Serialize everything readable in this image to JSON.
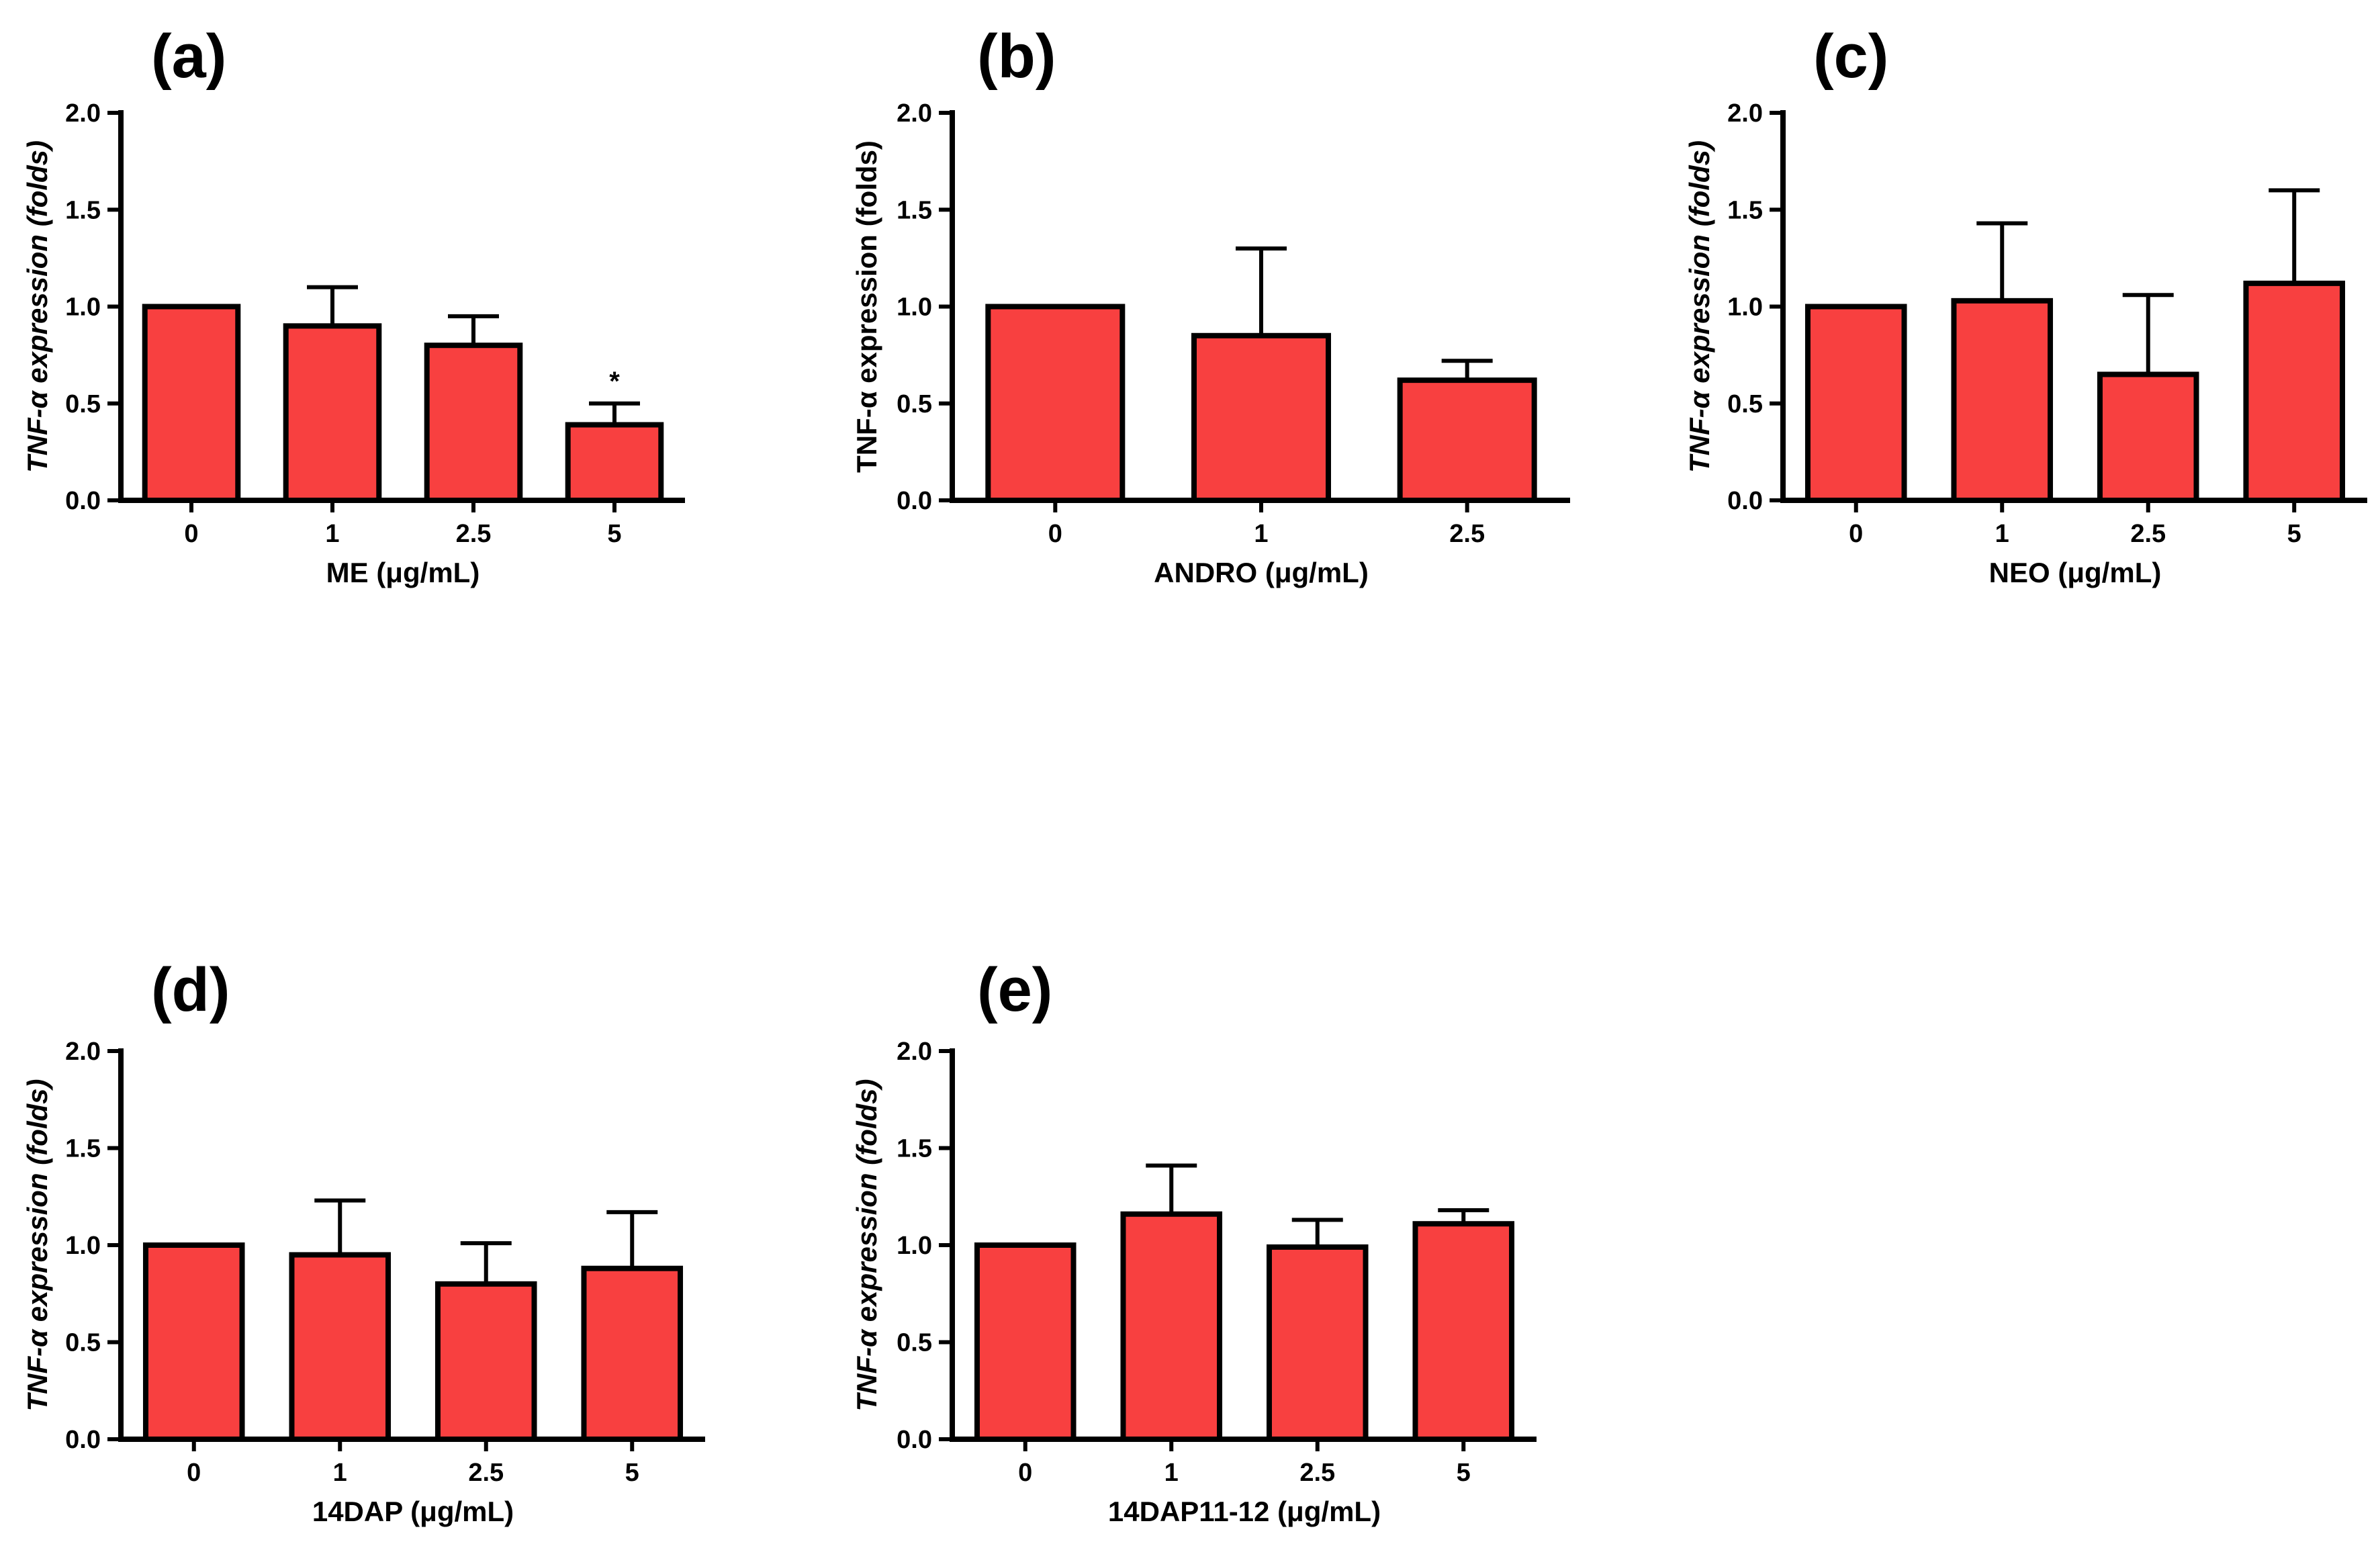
{
  "chart_data": [
    {
      "type": "bar",
      "panel_label": "(a)",
      "title": "",
      "xlabel": "ME (μg/mL)",
      "ylabel": "TNF-α expression (folds)",
      "ylabel_italic": true,
      "ylim": [
        0,
        2.0
      ],
      "yticks": [
        "0.0",
        "0.5",
        "1.0",
        "1.5",
        "2.0"
      ],
      "categories": [
        "0",
        "1",
        "2.5",
        "5"
      ],
      "values": [
        1.0,
        0.9,
        0.8,
        0.39
      ],
      "errors": [
        0.0,
        0.2,
        0.15,
        0.11
      ],
      "annotations": [
        "",
        "",
        "",
        "*"
      ],
      "bar_color": "#f84040",
      "grid": false
    },
    {
      "type": "bar",
      "panel_label": "(b)",
      "title": "",
      "xlabel": "ANDRO (μg/mL)",
      "ylabel": "TNF-α expression (folds)",
      "ylabel_italic": false,
      "ylim": [
        0,
        2.0
      ],
      "yticks": [
        "0.0",
        "0.5",
        "1.0",
        "1.5",
        "2.0"
      ],
      "categories": [
        "0",
        "1",
        "2.5"
      ],
      "values": [
        1.0,
        0.85,
        0.62
      ],
      "errors": [
        0.0,
        0.45,
        0.1
      ],
      "annotations": [
        "",
        "",
        ""
      ],
      "bar_color": "#f84040",
      "grid": false
    },
    {
      "type": "bar",
      "panel_label": "(c)",
      "title": "",
      "xlabel": "NEO (μg/mL)",
      "ylabel": "TNF-α expression (folds)",
      "ylabel_italic": true,
      "ylim": [
        0,
        2.0
      ],
      "yticks": [
        "0.0",
        "0.5",
        "1.0",
        "1.5",
        "2.0"
      ],
      "categories": [
        "0",
        "1",
        "2.5",
        "5"
      ],
      "values": [
        1.0,
        1.03,
        0.65,
        1.12
      ],
      "errors": [
        0.0,
        0.4,
        0.41,
        0.48
      ],
      "annotations": [
        "",
        "",
        "",
        ""
      ],
      "bar_color": "#f84040",
      "grid": false
    },
    {
      "type": "bar",
      "panel_label": "(d)",
      "title": "",
      "xlabel": "14DAP (μg/mL)",
      "ylabel": "TNF-α expression (folds)",
      "ylabel_italic": true,
      "ylim": [
        0,
        2.0
      ],
      "yticks": [
        "0.0",
        "0.5",
        "1.0",
        "1.5",
        "2.0"
      ],
      "categories": [
        "0",
        "1",
        "2.5",
        "5"
      ],
      "values": [
        1.0,
        0.95,
        0.8,
        0.88
      ],
      "errors": [
        0.0,
        0.28,
        0.21,
        0.29
      ],
      "annotations": [
        "",
        "",
        "",
        ""
      ],
      "bar_color": "#f84040",
      "grid": false
    },
    {
      "type": "bar",
      "panel_label": "(e)",
      "title": "",
      "xlabel": "14DAP11-12 (μg/mL)",
      "ylabel": "TNF-α expression (folds)",
      "ylabel_italic": true,
      "ylim": [
        0,
        2.0
      ],
      "yticks": [
        "0.0",
        "0.5",
        "1.0",
        "1.5",
        "2.0"
      ],
      "categories": [
        "0",
        "1",
        "2.5",
        "5"
      ],
      "values": [
        1.0,
        1.16,
        0.99,
        1.11
      ],
      "errors": [
        0.0,
        0.25,
        0.14,
        0.07
      ],
      "annotations": [
        "",
        "",
        "",
        ""
      ],
      "bar_color": "#f84040",
      "grid": false
    }
  ]
}
